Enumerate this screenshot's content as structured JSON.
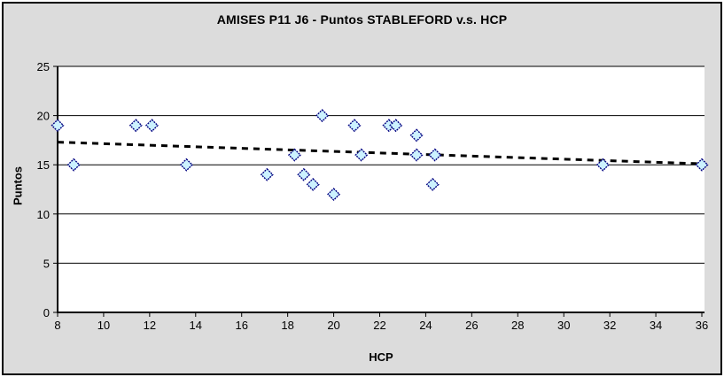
{
  "chart": {
    "title": "AMISES P11 J6 - Puntos STABLEFORD v.s. HCP",
    "x_axis_title": "HCP",
    "y_axis_title": "Puntos"
  },
  "colors": {
    "chart_background": "#DCDCDC",
    "plot_background": "#FFFFFF",
    "axis_and_grid": "#000000",
    "marker_fill": "#CCF2FF",
    "marker_border": "#000080",
    "trendline": "#000000",
    "outer_border": "#000000"
  },
  "chart_data": {
    "type": "scatter",
    "title": "AMISES P11 J6 - Puntos STABLEFORD v.s. HCP",
    "xlabel": "HCP",
    "ylabel": "Puntos",
    "xlim": [
      8,
      36
    ],
    "ylim": [
      0,
      25
    ],
    "xticks": [
      8,
      10,
      12,
      14,
      16,
      18,
      20,
      22,
      24,
      26,
      28,
      30,
      32,
      34,
      36
    ],
    "yticks": [
      0,
      5,
      10,
      15,
      20,
      25
    ],
    "grid": "horizontal-only",
    "legend": "none",
    "series": [
      {
        "name": "Puntos STABLEFORD",
        "marker": "diamond",
        "marker_fill": "#CCF2FF",
        "marker_stroke": "#000080",
        "points": [
          [
            8,
            19
          ],
          [
            8.7,
            15
          ],
          [
            11.4,
            19
          ],
          [
            12.1,
            19
          ],
          [
            13.6,
            15
          ],
          [
            17.1,
            14
          ],
          [
            18.3,
            16
          ],
          [
            18.7,
            14
          ],
          [
            19.1,
            13
          ],
          [
            19.5,
            20
          ],
          [
            20,
            12
          ],
          [
            20.9,
            19
          ],
          [
            21.2,
            16
          ],
          [
            22.4,
            19
          ],
          [
            22.7,
            19
          ],
          [
            23.6,
            16
          ],
          [
            23.6,
            18
          ],
          [
            24.3,
            13
          ],
          [
            24.4,
            16
          ],
          [
            31.7,
            15
          ],
          [
            36,
            15
          ]
        ]
      }
    ],
    "trendline": {
      "style": "dotted",
      "color": "#000000",
      "x": [
        8,
        36
      ],
      "y": [
        17.3,
        15.1
      ]
    }
  }
}
